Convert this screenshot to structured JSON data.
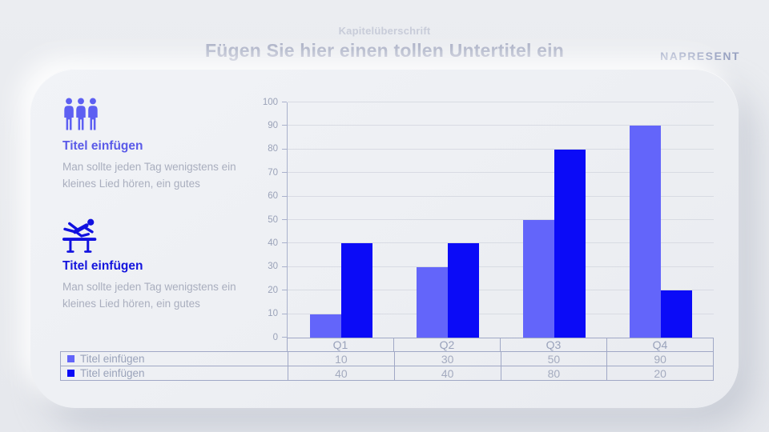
{
  "header": {
    "chapter": "Kapitelüberschrift",
    "title": "Fügen Sie hier einen tollen Untertitel ein",
    "logo": "NAPRESENT"
  },
  "features": [
    {
      "icon": "group-people-icon",
      "accent": "#5a5ae8",
      "title": "Titel einfügen",
      "body": [
        "Man sollte jeden Tag wenigstens ein",
        "kleines Lied hören, ein gutes"
      ]
    },
    {
      "icon": "hurdler-icon",
      "accent": "#1414dd",
      "title": "Titel einfügen",
      "body": [
        "Man sollte jeden Tag wenigstens ein",
        "kleines Lied hören, ein gutes"
      ]
    }
  ],
  "chart_data": {
    "type": "bar",
    "categories": [
      "Q1",
      "Q2",
      "Q3",
      "Q4"
    ],
    "series": [
      {
        "name": "Titel einfügen",
        "color": "#6365fa",
        "values": [
          10,
          30,
          50,
          90
        ]
      },
      {
        "name": "Titel einfügen",
        "color": "#0b0bf7",
        "values": [
          40,
          40,
          80,
          20
        ]
      }
    ],
    "title": "",
    "xlabel": "",
    "ylabel": "",
    "ylim": [
      0,
      100
    ],
    "ytick_step": 10,
    "grid": true,
    "legend_position": "table-below-chart"
  },
  "colors": {
    "series1": "#6365fa",
    "series2": "#0b0bf7",
    "accent1": "#5a5ae8",
    "accent2": "#1414dd",
    "table_border": "#a0a8c6",
    "muted_text": "#9aa3ba"
  }
}
